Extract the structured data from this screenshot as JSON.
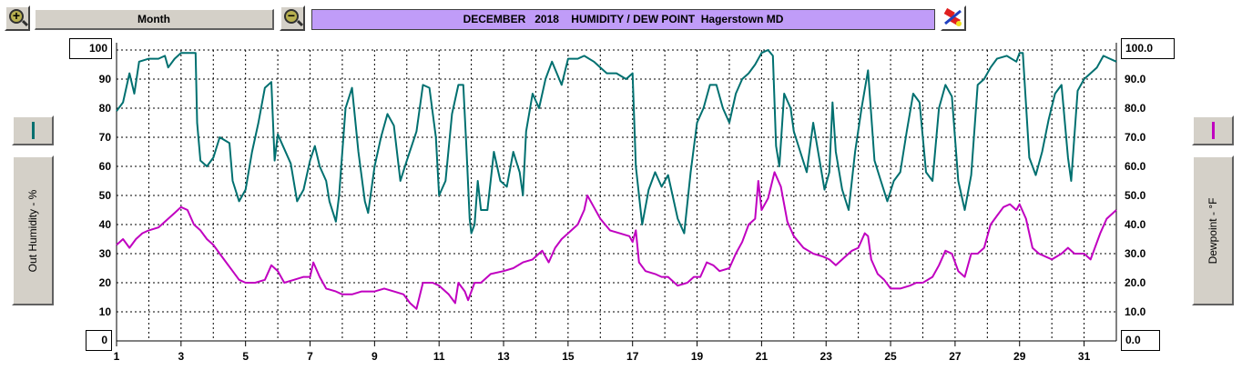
{
  "toolbar": {
    "zoom_in_icon": "zoom-in-icon",
    "zoom_out_icon": "zoom-out-icon",
    "period_label": "Month",
    "title": "DECEMBER   2018    HUMIDITY / DEW POINT  Hagerstown MD",
    "settings_icon": "color-palette-icon"
  },
  "left_axis": {
    "label": "Out Humidity - %",
    "top_value": "100",
    "bottom_value": "0",
    "series_color": "#007070"
  },
  "right_axis": {
    "label": "Dewpoint - °F",
    "top_value": "100.0",
    "bottom_value": "0.0",
    "series_color": "#c000c0"
  },
  "chart_data": {
    "type": "line",
    "title": "DECEMBER   2018    HUMIDITY / DEW POINT  Hagerstown MD",
    "xlabel": "",
    "xlim": [
      1,
      32
    ],
    "x_ticks": [
      1,
      3,
      5,
      7,
      9,
      11,
      13,
      15,
      17,
      19,
      21,
      23,
      25,
      27,
      29,
      31
    ],
    "grid": true,
    "y_left": {
      "label": "Out Humidity - %",
      "ylim": [
        0,
        100
      ],
      "tick_labels": [
        "10",
        "20",
        "30",
        "40",
        "50",
        "60",
        "70",
        "80",
        "90"
      ]
    },
    "y_right": {
      "label": "Dewpoint - °F",
      "ylim": [
        0,
        100
      ],
      "tick_labels": [
        "10.0",
        "20.0",
        "30.0",
        "40.0",
        "50.0",
        "60.0",
        "70.0",
        "80.0",
        "90.0"
      ]
    },
    "series": [
      {
        "axis": "left",
        "color": "#007070",
        "points": [
          [
            1.0,
            79
          ],
          [
            1.2,
            82
          ],
          [
            1.4,
            92
          ],
          [
            1.55,
            85
          ],
          [
            1.7,
            96
          ],
          [
            2.0,
            97
          ],
          [
            2.3,
            97
          ],
          [
            2.5,
            98
          ],
          [
            2.6,
            94
          ],
          [
            2.8,
            97
          ],
          [
            3.0,
            99
          ],
          [
            3.2,
            99
          ],
          [
            3.45,
            99
          ],
          [
            3.5,
            75
          ],
          [
            3.6,
            62
          ],
          [
            3.8,
            60
          ],
          [
            4.0,
            63
          ],
          [
            4.2,
            70
          ],
          [
            4.5,
            68
          ],
          [
            4.6,
            55
          ],
          [
            4.8,
            48
          ],
          [
            5.0,
            52
          ],
          [
            5.2,
            65
          ],
          [
            5.4,
            75
          ],
          [
            5.6,
            87
          ],
          [
            5.8,
            89
          ],
          [
            5.9,
            62
          ],
          [
            6.0,
            71
          ],
          [
            6.2,
            66
          ],
          [
            6.4,
            61
          ],
          [
            6.6,
            48
          ],
          [
            6.8,
            52
          ],
          [
            7.0,
            62
          ],
          [
            7.15,
            67
          ],
          [
            7.3,
            60
          ],
          [
            7.5,
            55
          ],
          [
            7.6,
            48
          ],
          [
            7.8,
            41
          ],
          [
            7.9,
            50
          ],
          [
            8.1,
            80
          ],
          [
            8.3,
            87
          ],
          [
            8.5,
            65
          ],
          [
            8.7,
            48
          ],
          [
            8.8,
            44
          ],
          [
            9.0,
            60
          ],
          [
            9.2,
            70
          ],
          [
            9.4,
            78
          ],
          [
            9.6,
            74
          ],
          [
            9.8,
            55
          ],
          [
            10.0,
            62
          ],
          [
            10.3,
            72
          ],
          [
            10.5,
            88
          ],
          [
            10.7,
            87
          ],
          [
            10.9,
            70
          ],
          [
            11.0,
            50
          ],
          [
            11.2,
            55
          ],
          [
            11.4,
            78
          ],
          [
            11.6,
            88
          ],
          [
            11.75,
            88
          ],
          [
            11.85,
            66
          ],
          [
            11.95,
            42
          ],
          [
            12.0,
            37
          ],
          [
            12.1,
            40
          ],
          [
            12.2,
            55
          ],
          [
            12.3,
            45
          ],
          [
            12.5,
            45
          ],
          [
            12.7,
            65
          ],
          [
            12.9,
            55
          ],
          [
            13.1,
            53
          ],
          [
            13.3,
            65
          ],
          [
            13.5,
            58
          ],
          [
            13.6,
            50
          ],
          [
            13.7,
            72
          ],
          [
            13.9,
            85
          ],
          [
            14.1,
            80
          ],
          [
            14.3,
            90
          ],
          [
            14.5,
            96
          ],
          [
            14.8,
            88
          ],
          [
            15.0,
            97
          ],
          [
            15.3,
            97
          ],
          [
            15.5,
            98
          ],
          [
            15.8,
            96
          ],
          [
            16.0,
            94
          ],
          [
            16.2,
            92
          ],
          [
            16.5,
            92
          ],
          [
            16.8,
            90
          ],
          [
            17.0,
            92
          ],
          [
            17.1,
            60
          ],
          [
            17.3,
            40
          ],
          [
            17.5,
            52
          ],
          [
            17.7,
            58
          ],
          [
            17.9,
            53
          ],
          [
            18.1,
            57
          ],
          [
            18.4,
            42
          ],
          [
            18.6,
            37
          ],
          [
            18.8,
            58
          ],
          [
            19.0,
            75
          ],
          [
            19.2,
            80
          ],
          [
            19.4,
            88
          ],
          [
            19.6,
            88
          ],
          [
            19.8,
            80
          ],
          [
            20.0,
            75
          ],
          [
            20.2,
            85
          ],
          [
            20.4,
            90
          ],
          [
            20.6,
            92
          ],
          [
            20.8,
            95
          ],
          [
            21.0,
            99
          ],
          [
            21.2,
            100
          ],
          [
            21.35,
            98
          ],
          [
            21.45,
            67
          ],
          [
            21.55,
            60
          ],
          [
            21.7,
            85
          ],
          [
            21.9,
            80
          ],
          [
            22.0,
            72
          ],
          [
            22.2,
            65
          ],
          [
            22.4,
            58
          ],
          [
            22.6,
            75
          ],
          [
            22.8,
            62
          ],
          [
            22.95,
            52
          ],
          [
            23.1,
            58
          ],
          [
            23.2,
            82
          ],
          [
            23.3,
            65
          ],
          [
            23.5,
            52
          ],
          [
            23.7,
            45
          ],
          [
            23.9,
            65
          ],
          [
            24.1,
            80
          ],
          [
            24.3,
            93
          ],
          [
            24.5,
            62
          ],
          [
            24.7,
            55
          ],
          [
            24.9,
            48
          ],
          [
            25.1,
            55
          ],
          [
            25.3,
            58
          ],
          [
            25.5,
            72
          ],
          [
            25.7,
            85
          ],
          [
            25.9,
            82
          ],
          [
            26.1,
            58
          ],
          [
            26.3,
            55
          ],
          [
            26.5,
            80
          ],
          [
            26.7,
            88
          ],
          [
            26.9,
            84
          ],
          [
            27.1,
            55
          ],
          [
            27.3,
            45
          ],
          [
            27.5,
            57
          ],
          [
            27.7,
            88
          ],
          [
            27.9,
            90
          ],
          [
            28.1,
            94
          ],
          [
            28.3,
            97
          ],
          [
            28.6,
            98
          ],
          [
            28.9,
            96
          ],
          [
            29.0,
            99
          ],
          [
            29.1,
            99
          ],
          [
            29.3,
            63
          ],
          [
            29.5,
            57
          ],
          [
            29.7,
            65
          ],
          [
            29.9,
            76
          ],
          [
            30.1,
            85
          ],
          [
            30.3,
            88
          ],
          [
            30.5,
            63
          ],
          [
            30.6,
            55
          ],
          [
            30.8,
            86
          ],
          [
            31.0,
            90
          ],
          [
            31.2,
            92
          ],
          [
            31.4,
            94
          ],
          [
            31.6,
            98
          ],
          [
            31.8,
            97
          ],
          [
            32.0,
            96
          ]
        ]
      },
      {
        "axis": "right",
        "color": "#c000c0",
        "points": [
          [
            1.0,
            33
          ],
          [
            1.2,
            35
          ],
          [
            1.4,
            32
          ],
          [
            1.6,
            35
          ],
          [
            1.8,
            37
          ],
          [
            2.0,
            38
          ],
          [
            2.3,
            39
          ],
          [
            2.6,
            42
          ],
          [
            2.8,
            44
          ],
          [
            3.0,
            46
          ],
          [
            3.2,
            45
          ],
          [
            3.4,
            40
          ],
          [
            3.6,
            38
          ],
          [
            3.8,
            35
          ],
          [
            4.0,
            33
          ],
          [
            4.2,
            30
          ],
          [
            4.4,
            27
          ],
          [
            4.6,
            24
          ],
          [
            4.8,
            21
          ],
          [
            5.0,
            20
          ],
          [
            5.3,
            20
          ],
          [
            5.6,
            21
          ],
          [
            5.8,
            26
          ],
          [
            6.0,
            24
          ],
          [
            6.2,
            20
          ],
          [
            6.5,
            21
          ],
          [
            6.8,
            22
          ],
          [
            7.0,
            22
          ],
          [
            7.1,
            27
          ],
          [
            7.3,
            22
          ],
          [
            7.5,
            18
          ],
          [
            7.8,
            17
          ],
          [
            8.0,
            16
          ],
          [
            8.3,
            16
          ],
          [
            8.6,
            17
          ],
          [
            9.0,
            17
          ],
          [
            9.3,
            18
          ],
          [
            9.6,
            17
          ],
          [
            9.9,
            16
          ],
          [
            10.1,
            13
          ],
          [
            10.3,
            11
          ],
          [
            10.5,
            20
          ],
          [
            10.8,
            20
          ],
          [
            11.0,
            19
          ],
          [
            11.3,
            16
          ],
          [
            11.5,
            13
          ],
          [
            11.6,
            20
          ],
          [
            11.8,
            17
          ],
          [
            11.9,
            14
          ],
          [
            12.1,
            20
          ],
          [
            12.3,
            20
          ],
          [
            12.6,
            23
          ],
          [
            13.0,
            24
          ],
          [
            13.3,
            25
          ],
          [
            13.6,
            27
          ],
          [
            13.9,
            28
          ],
          [
            14.2,
            31
          ],
          [
            14.4,
            27
          ],
          [
            14.6,
            32
          ],
          [
            14.8,
            35
          ],
          [
            15.0,
            37
          ],
          [
            15.3,
            40
          ],
          [
            15.5,
            45
          ],
          [
            15.6,
            50
          ],
          [
            15.8,
            46
          ],
          [
            16.0,
            42
          ],
          [
            16.3,
            38
          ],
          [
            16.6,
            37
          ],
          [
            16.9,
            36
          ],
          [
            17.0,
            34
          ],
          [
            17.1,
            38
          ],
          [
            17.2,
            27
          ],
          [
            17.4,
            24
          ],
          [
            17.7,
            23
          ],
          [
            17.9,
            22
          ],
          [
            18.1,
            22
          ],
          [
            18.4,
            19
          ],
          [
            18.7,
            20
          ],
          [
            18.9,
            22
          ],
          [
            19.1,
            22
          ],
          [
            19.3,
            27
          ],
          [
            19.5,
            26
          ],
          [
            19.7,
            24
          ],
          [
            20.0,
            25
          ],
          [
            20.2,
            30
          ],
          [
            20.4,
            34
          ],
          [
            20.6,
            40
          ],
          [
            20.8,
            42
          ],
          [
            20.9,
            55
          ],
          [
            21.0,
            45
          ],
          [
            21.2,
            49
          ],
          [
            21.4,
            58
          ],
          [
            21.6,
            53
          ],
          [
            21.8,
            41
          ],
          [
            22.0,
            36
          ],
          [
            22.3,
            32
          ],
          [
            22.6,
            30
          ],
          [
            22.9,
            29
          ],
          [
            23.1,
            28
          ],
          [
            23.3,
            26
          ],
          [
            23.5,
            28
          ],
          [
            23.8,
            31
          ],
          [
            24.0,
            32
          ],
          [
            24.2,
            37
          ],
          [
            24.3,
            36
          ],
          [
            24.4,
            28
          ],
          [
            24.6,
            23
          ],
          [
            24.8,
            21
          ],
          [
            25.0,
            18
          ],
          [
            25.3,
            18
          ],
          [
            25.6,
            19
          ],
          [
            25.8,
            20
          ],
          [
            26.0,
            20
          ],
          [
            26.3,
            22
          ],
          [
            26.5,
            26
          ],
          [
            26.7,
            31
          ],
          [
            26.9,
            30
          ],
          [
            27.1,
            24
          ],
          [
            27.3,
            22
          ],
          [
            27.5,
            30
          ],
          [
            27.7,
            30
          ],
          [
            27.9,
            32
          ],
          [
            28.1,
            40
          ],
          [
            28.3,
            43
          ],
          [
            28.5,
            46
          ],
          [
            28.7,
            47
          ],
          [
            28.9,
            45
          ],
          [
            29.0,
            47
          ],
          [
            29.2,
            42
          ],
          [
            29.4,
            32
          ],
          [
            29.6,
            30
          ],
          [
            29.8,
            29
          ],
          [
            30.0,
            28
          ],
          [
            30.3,
            30
          ],
          [
            30.5,
            32
          ],
          [
            30.7,
            30
          ],
          [
            31.0,
            30
          ],
          [
            31.2,
            28
          ],
          [
            31.5,
            37
          ],
          [
            31.7,
            42
          ],
          [
            32.0,
            45
          ]
        ]
      }
    ]
  }
}
